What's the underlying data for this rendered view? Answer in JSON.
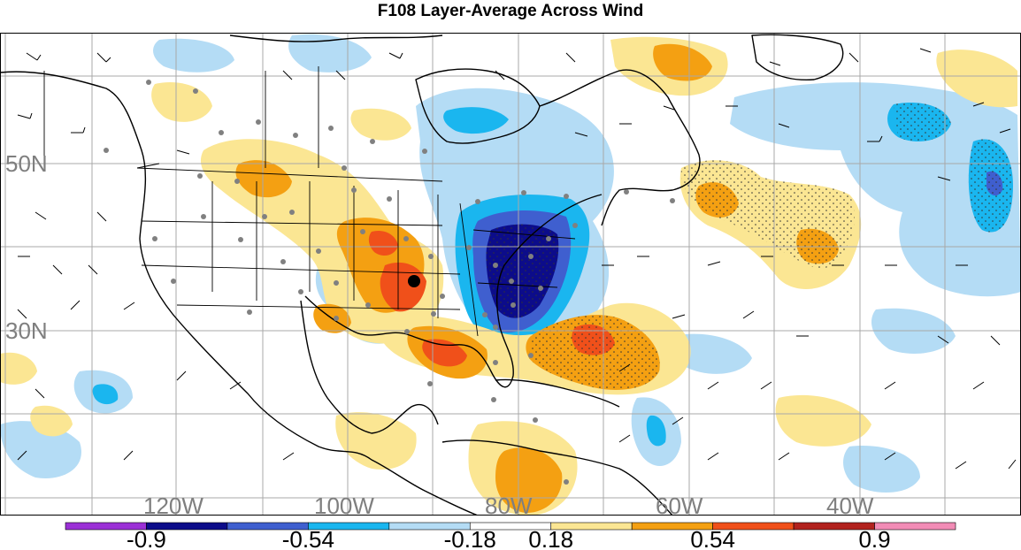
{
  "title": "F108 Layer-Average Across Wind",
  "lat_labels": [
    {
      "text": "50N",
      "lat": 50
    },
    {
      "text": "30N",
      "lat": 30
    }
  ],
  "lon_labels": [
    {
      "text": "120W",
      "lon": -120
    },
    {
      "text": "100W",
      "lon": -100
    },
    {
      "text": "80W",
      "lon": -80
    },
    {
      "text": "60W",
      "lon": -60
    },
    {
      "text": "40W",
      "lon": -40
    }
  ],
  "colorbar": {
    "colors": [
      "#9b30d6",
      "#0c0c8a",
      "#3f5fcf",
      "#1ab6ef",
      "#b4dcf5",
      "#ffffff",
      "#fbe693",
      "#f4a012",
      "#f0501a",
      "#b2221e",
      "#f28cb6"
    ],
    "ticks": [
      "-0.9",
      "-0.54",
      "-0.18",
      "0.18",
      "0.54",
      "0.9"
    ]
  },
  "colors": {
    "grid": "#a8a8a8",
    "coast": "#000000",
    "station": "#808080",
    "marker": "#000000"
  }
}
